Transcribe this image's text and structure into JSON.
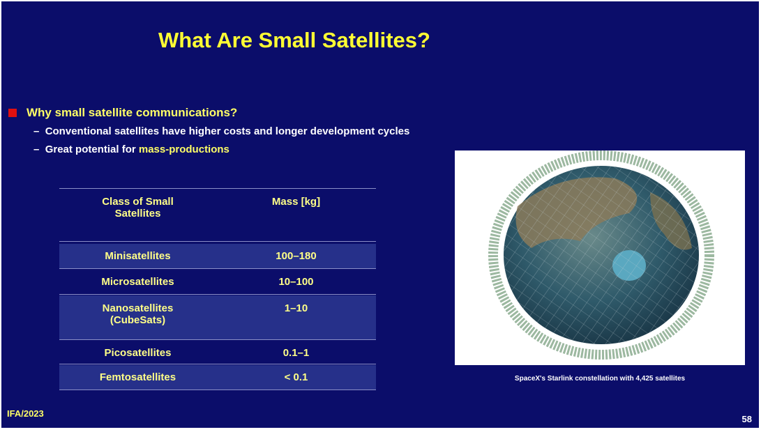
{
  "title": "What Are Small Satellites?",
  "bullets": [
    {
      "text": "Why small satellite communications?",
      "subs": [
        {
          "text": "Conventional satellites have higher costs and longer development cycles"
        },
        {
          "text": "Great potential for ",
          "highlight": "mass-productions"
        }
      ]
    }
  ],
  "table": {
    "header": [
      "Class of Small Satellites",
      "Mass [kg]"
    ],
    "rows": [
      [
        "Minisatellites",
        "100–180"
      ],
      [
        "Microsatellites",
        "10–100"
      ],
      [
        "Nanosatellites (CubeSats)",
        "1–10"
      ],
      [
        "Picosatellites",
        "0.1–1"
      ],
      [
        "Femtosatellites",
        "< 0.1"
      ]
    ]
  },
  "image": {
    "caption": "SpaceX's Starlink constellation with 4,425 satellites"
  },
  "footer": {
    "left": "IFA/2023",
    "page": "58"
  }
}
